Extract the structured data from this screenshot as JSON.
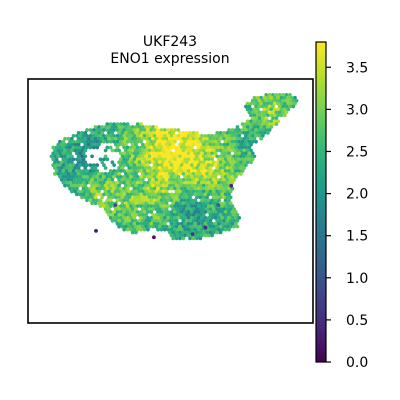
{
  "chart_data": {
    "type": "scatter",
    "title": "UKF243",
    "subtitle": "ENO1 expression",
    "xlabel": "",
    "ylabel": "",
    "grid": false,
    "legend": "colorbar-right",
    "colormap": "viridis",
    "colormap_stops": [
      "#440154",
      "#482878",
      "#3e4989",
      "#31688e",
      "#26828e",
      "#1f9e89",
      "#35b779",
      "#6ece58",
      "#b5de2b",
      "#fde725"
    ],
    "color_range": [
      0.0,
      3.8
    ],
    "colorbar_ticks": [
      "0.0",
      "0.5",
      "1.0",
      "1.5",
      "2.0",
      "2.5",
      "3.0",
      "3.5"
    ],
    "colorbar_tick_values": [
      0.0,
      0.5,
      1.0,
      1.5,
      2.0,
      2.5,
      3.0,
      3.5
    ],
    "tissue_outline": [
      [
        5,
        18
      ],
      [
        9,
        16
      ],
      [
        14,
        14
      ],
      [
        20,
        12
      ],
      [
        27,
        11
      ],
      [
        34,
        12
      ],
      [
        40,
        13
      ],
      [
        46,
        14
      ],
      [
        52,
        15
      ],
      [
        58,
        14
      ],
      [
        63,
        12
      ],
      [
        66,
        10
      ],
      [
        64,
        7
      ],
      [
        65,
        5
      ],
      [
        68,
        3
      ],
      [
        72,
        2
      ],
      [
        76,
        2
      ],
      [
        80,
        3
      ],
      [
        81,
        5
      ],
      [
        78,
        8
      ],
      [
        74,
        12
      ],
      [
        70,
        16
      ],
      [
        66,
        19
      ],
      [
        68,
        22
      ],
      [
        64,
        26
      ],
      [
        61,
        30
      ],
      [
        60,
        34
      ],
      [
        61,
        38
      ],
      [
        63,
        41
      ],
      [
        62,
        44
      ],
      [
        58,
        45
      ],
      [
        53,
        47
      ],
      [
        48,
        48
      ],
      [
        43,
        48
      ],
      [
        40,
        46
      ],
      [
        36,
        44
      ],
      [
        33,
        45
      ],
      [
        30,
        46
      ],
      [
        25,
        44
      ],
      [
        22,
        41
      ],
      [
        20,
        38
      ],
      [
        16,
        36
      ],
      [
        12,
        34
      ],
      [
        8,
        31
      ],
      [
        5,
        27
      ],
      [
        4,
        22
      ]
    ],
    "y_inverted": true,
    "dropped_region": [
      [
        14,
        20
      ],
      [
        18,
        18
      ],
      [
        24,
        18
      ],
      [
        26,
        22
      ],
      [
        24,
        26
      ],
      [
        20,
        27
      ],
      [
        16,
        25
      ]
    ],
    "hotspot_regions": [
      [
        38,
        20,
        10
      ],
      [
        44,
        16,
        7
      ],
      [
        35,
        33,
        7
      ],
      [
        22,
        34,
        6
      ],
      [
        54,
        28,
        7
      ],
      [
        72,
        8,
        5
      ]
    ],
    "coldspot_regions": [
      [
        30,
        30,
        6
      ],
      [
        48,
        36,
        5
      ],
      [
        16,
        22,
        4
      ]
    ],
    "low_outliers": [
      [
        18,
        45,
        0.3
      ],
      [
        36,
        47,
        0.2
      ],
      [
        48,
        46,
        0.6
      ],
      [
        60,
        31,
        0.4
      ],
      [
        56,
        37,
        1.1
      ],
      [
        24,
        37,
        0.9
      ],
      [
        52,
        44,
        0.5
      ]
    ]
  }
}
